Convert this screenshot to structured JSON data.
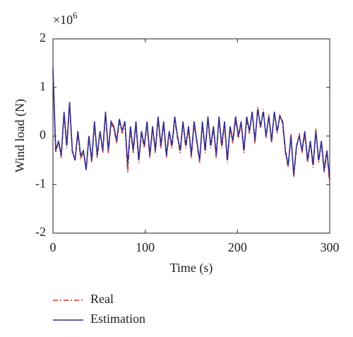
{
  "chart_data": {
    "type": "line",
    "xlabel": "Time (s)",
    "ylabel": "Wind load (N)",
    "y_multiplier": {
      "base": "×10",
      "exponent": "6"
    },
    "x": [
      0,
      3,
      6,
      9,
      12,
      15,
      18,
      21,
      24,
      27,
      30,
      33,
      36,
      39,
      42,
      45,
      48,
      51,
      54,
      57,
      60,
      63,
      66,
      69,
      72,
      75,
      78,
      81,
      84,
      87,
      90,
      93,
      96,
      99,
      102,
      105,
      108,
      111,
      114,
      117,
      120,
      123,
      126,
      129,
      132,
      135,
      138,
      141,
      144,
      147,
      150,
      153,
      156,
      159,
      162,
      165,
      168,
      171,
      174,
      177,
      180,
      183,
      186,
      189,
      192,
      195,
      198,
      201,
      204,
      207,
      210,
      213,
      216,
      219,
      222,
      225,
      228,
      231,
      234,
      237,
      240,
      243,
      246,
      249,
      252,
      255,
      258,
      261,
      264,
      267,
      270,
      273,
      276,
      279,
      282,
      285,
      288,
      291,
      294,
      297,
      300
    ],
    "series": [
      {
        "name": "Real",
        "color": "#d03a1e",
        "dash": "dashdot",
        "values": [
          1.3,
          -0.35,
          -0.1,
          -0.45,
          0.45,
          -0.25,
          0.65,
          -0.35,
          -0.5,
          0.05,
          -0.45,
          -0.35,
          -0.65,
          0.0,
          -0.55,
          0.25,
          -0.45,
          0.1,
          -0.35,
          0.45,
          -0.35,
          0.25,
          0.15,
          -0.15,
          0.3,
          0.05,
          0.25,
          -0.75,
          0.15,
          -0.35,
          0.25,
          -0.55,
          0.05,
          -0.25,
          0.25,
          -0.45,
          0.15,
          -0.35,
          0.35,
          -0.25,
          0.25,
          -0.45,
          0.05,
          -0.25,
          0.35,
          -0.05,
          -0.35,
          0.25,
          -0.25,
          0.15,
          -0.45,
          0.25,
          -0.15,
          -0.55,
          0.25,
          -0.35,
          0.35,
          -0.25,
          0.15,
          -0.45,
          0.35,
          -0.25,
          0.25,
          -0.55,
          0.15,
          -0.15,
          0.35,
          -0.05,
          0.25,
          -0.35,
          0.35,
          0.05,
          0.5,
          -0.15,
          0.6,
          0.15,
          0.55,
          -0.05,
          0.45,
          -0.15,
          0.5,
          0.05,
          0.45,
          0.25,
          -0.35,
          -0.65,
          0.05,
          -0.85,
          -0.25,
          0.05,
          -0.35,
          0.05,
          -0.55,
          -0.15,
          -0.65,
          0.15,
          -0.55,
          -0.15,
          -0.75,
          -0.35,
          -1.0
        ]
      },
      {
        "name": "Estimation",
        "color": "#33308f",
        "dash": "solid",
        "values": [
          1.4,
          -0.3,
          -0.1,
          -0.4,
          0.5,
          -0.2,
          0.7,
          -0.3,
          -0.5,
          0.1,
          -0.4,
          -0.3,
          -0.7,
          0.0,
          -0.5,
          0.3,
          -0.4,
          0.1,
          -0.3,
          0.5,
          -0.3,
          0.3,
          0.2,
          -0.1,
          0.35,
          0.1,
          0.3,
          -0.6,
          0.2,
          -0.3,
          0.3,
          -0.5,
          0.1,
          -0.2,
          0.3,
          -0.4,
          0.2,
          -0.3,
          0.4,
          -0.2,
          0.3,
          -0.4,
          0.1,
          -0.2,
          0.4,
          0.0,
          -0.3,
          0.3,
          -0.2,
          0.2,
          -0.4,
          0.3,
          -0.1,
          -0.5,
          0.3,
          -0.3,
          0.4,
          -0.2,
          0.2,
          -0.4,
          0.4,
          -0.2,
          0.3,
          -0.5,
          0.2,
          -0.1,
          0.4,
          0.0,
          0.3,
          -0.3,
          0.4,
          0.1,
          0.5,
          -0.1,
          0.55,
          0.2,
          0.5,
          0.0,
          0.4,
          -0.1,
          0.5,
          0.1,
          0.4,
          0.3,
          -0.3,
          -0.6,
          0.0,
          -0.8,
          -0.2,
          0.0,
          -0.3,
          0.1,
          -0.5,
          -0.1,
          -0.6,
          0.1,
          -0.5,
          -0.1,
          -0.7,
          -0.3,
          -0.9
        ]
      }
    ],
    "xlim": [
      0,
      300
    ],
    "xticks": [
      0,
      100,
      200,
      300
    ],
    "ylim": [
      -2,
      2
    ],
    "yticks": [
      -2,
      -1,
      0,
      1,
      2
    ],
    "grid": false,
    "legend": "bottom"
  }
}
